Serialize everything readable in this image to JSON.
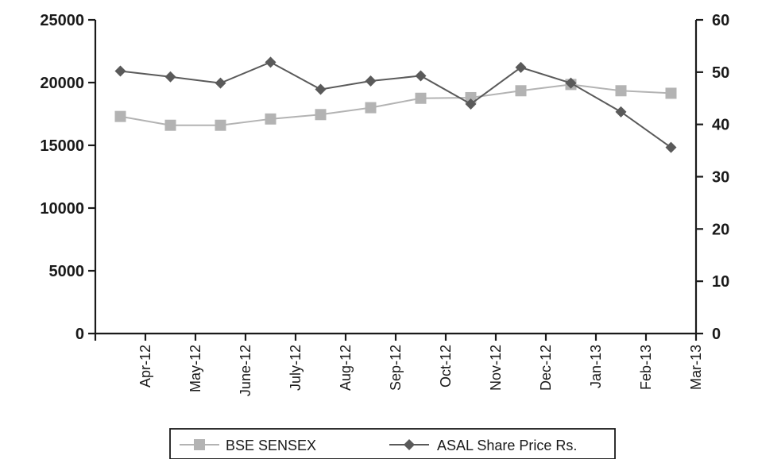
{
  "chart_data": {
    "type": "line",
    "categories": [
      "Apr-12",
      "May-12",
      "June-12",
      "July-12",
      "Aug-12",
      "Sep-12",
      "Oct-12",
      "Nov-12",
      "Dec-12",
      "Jan-13",
      "Feb-13",
      "Mar-13"
    ],
    "title": "",
    "xlabel": "",
    "ylabel": "",
    "y_left": {
      "range": [
        0,
        25000
      ],
      "ticks": [
        "0",
        "5000",
        "10000",
        "15000",
        "20000",
        "25000"
      ]
    },
    "y_right": {
      "range": [
        0,
        60
      ],
      "ticks": [
        "0",
        "10",
        "20",
        "30",
        "40",
        "50",
        "60"
      ]
    },
    "grid": false,
    "legend_position": "bottom",
    "series": [
      {
        "name": "BSE SENSEX",
        "axis": "left",
        "marker": "square",
        "color": "#b3b3b3",
        "values": [
          17300,
          16600,
          16600,
          17100,
          17450,
          18000,
          18750,
          18800,
          19350,
          19850,
          19350,
          19150
        ]
      },
      {
        "name": "ASAL Share Price Rs.",
        "axis": "right",
        "marker": "diamond",
        "color": "#5a5a5a",
        "values": [
          50.2,
          49.1,
          47.9,
          51.9,
          46.7,
          48.3,
          49.3,
          43.9,
          50.9,
          47.9,
          42.4,
          35.6
        ]
      }
    ]
  }
}
